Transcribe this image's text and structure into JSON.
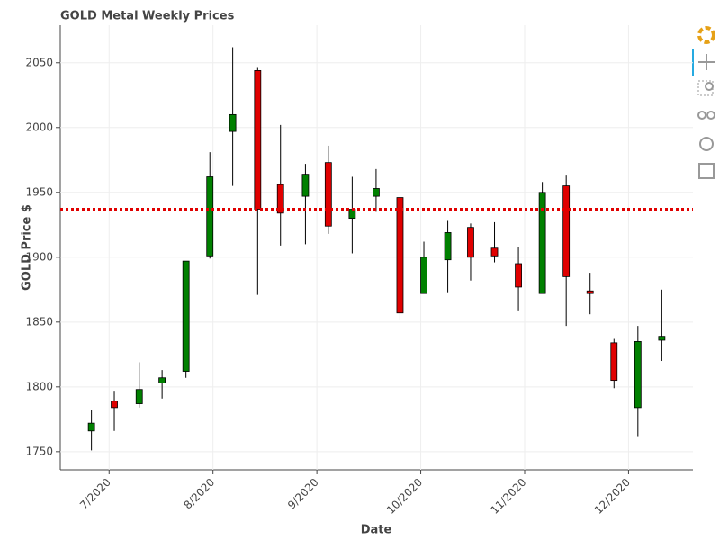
{
  "chart_data": {
    "type": "candlestick",
    "title": "GOLD Metal Weekly Prices",
    "x_label": "Date",
    "y_label": "GOLD Price $",
    "x": [
      6.83,
      7.05,
      7.29,
      7.51,
      7.74,
      7.97,
      8.19,
      8.43,
      8.65,
      8.89,
      9.11,
      9.34,
      9.57,
      9.8,
      10.03,
      10.26,
      10.48,
      10.71,
      10.94,
      11.17,
      11.4,
      11.63,
      11.86,
      12.09,
      12.32
    ],
    "open": [
      1766,
      1789,
      1787,
      1803,
      1812,
      1901,
      1997,
      2044,
      1956,
      1947,
      1973,
      1930,
      1947,
      1946,
      1872,
      1898,
      1923,
      1907,
      1895,
      1872,
      1955,
      1874,
      1834,
      1784,
      1836
    ],
    "high": [
      1782,
      1797,
      1819,
      1813,
      1897,
      1981,
      2062,
      2046,
      2002,
      1972,
      1986,
      1962,
      1968,
      1946,
      1912,
      1928,
      1926,
      1927,
      1908,
      1958,
      1963,
      1888,
      1837,
      1847,
      1875
    ],
    "low": [
      1751,
      1766,
      1784,
      1791,
      1807,
      1899,
      1955,
      1871,
      1909,
      1910,
      1918,
      1903,
      1935,
      1852,
      1872,
      1873,
      1882,
      1896,
      1859,
      1872,
      1847,
      1856,
      1799,
      1762,
      1820
    ],
    "close": [
      1772,
      1784,
      1798,
      1807,
      1897,
      1962,
      2010,
      1937,
      1934,
      1964,
      1924,
      1937,
      1953,
      1857,
      1900,
      1919,
      1900,
      1901,
      1877,
      1950,
      1885,
      1872,
      1805,
      1835,
      1839
    ],
    "up_color": "#008000",
    "down_color": "#e00000",
    "hline": 1937,
    "hline_color": "#e00000",
    "xlim": [
      6.53,
      12.62
    ],
    "xticks": [
      {
        "value": 7,
        "label": "7/2020"
      },
      {
        "value": 8,
        "label": "8/2020"
      },
      {
        "value": 9,
        "label": "9/2020"
      },
      {
        "value": 10,
        "label": "10/2020"
      },
      {
        "value": 11,
        "label": "11/2020"
      },
      {
        "value": 12,
        "label": "12/2020"
      }
    ],
    "ylim": [
      1736,
      2079
    ],
    "yticks": [
      1750,
      1800,
      1850,
      1900,
      1950,
      2000,
      2050
    ],
    "grid": true
  }
}
